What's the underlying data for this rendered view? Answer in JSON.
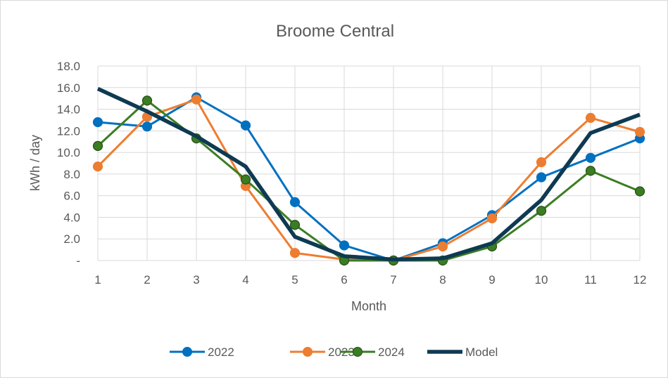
{
  "chart_data": {
    "type": "line",
    "title": "Broome Central",
    "xlabel": "Month",
    "ylabel": "kWh / day",
    "ylim": [
      0,
      18
    ],
    "yticks": [
      0,
      2,
      4,
      6,
      8,
      10,
      12,
      14,
      16,
      18
    ],
    "ytick_labels": [
      "-",
      "2.0",
      "4.0",
      "6.0",
      "8.0",
      "10.0",
      "12.0",
      "14.0",
      "16.0",
      "18.0"
    ],
    "categories": [
      "1",
      "2",
      "3",
      "4",
      "5",
      "6",
      "7",
      "8",
      "9",
      "10",
      "11",
      "12"
    ],
    "grid": true,
    "legend_position": "bottom",
    "series": [
      {
        "name": "2022",
        "color": "#0070C0",
        "markers": true,
        "values": [
          12.8,
          12.4,
          15.1,
          12.5,
          5.4,
          1.4,
          0.0,
          1.6,
          4.2,
          7.7,
          9.5,
          11.3
        ]
      },
      {
        "name": "2023",
        "color": "#ED7D31",
        "markers": true,
        "values": [
          8.7,
          13.3,
          14.9,
          6.9,
          0.7,
          0.1,
          0.0,
          1.3,
          3.9,
          9.1,
          13.2,
          11.9
        ]
      },
      {
        "name": "2024",
        "color": "#3B7D23",
        "markers": true,
        "values": [
          10.6,
          14.8,
          11.3,
          7.5,
          3.3,
          0.0,
          0.0,
          0.0,
          1.3,
          4.6,
          8.3,
          6.4
        ]
      },
      {
        "name": "Model",
        "color": "#0E3A52",
        "markers": false,
        "values": [
          15.9,
          13.8,
          11.5,
          8.7,
          2.2,
          0.4,
          0.1,
          0.2,
          1.6,
          5.6,
          11.8,
          13.5
        ]
      }
    ]
  }
}
